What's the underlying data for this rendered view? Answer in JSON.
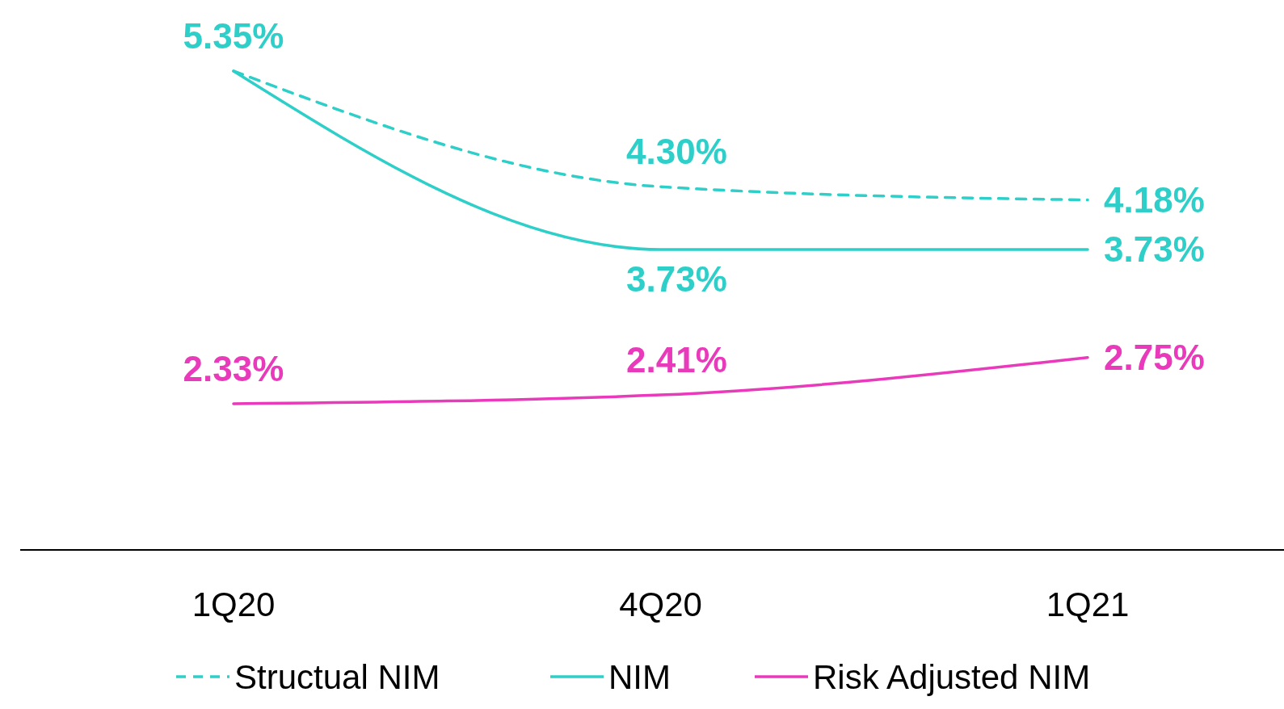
{
  "chart_data": {
    "type": "line",
    "categories": [
      "1Q20",
      "4Q20",
      "1Q21"
    ],
    "tick_labels": "x",
    "legend": "bottom",
    "grid": false,
    "series": [
      {
        "name": "Structual NIM",
        "color": "#2ecfc9",
        "line_style": "dashed",
        "values": [
          5.35,
          4.3,
          4.18
        ],
        "value_labels": [
          null,
          "4.30%",
          "4.18%"
        ]
      },
      {
        "name": "NIM",
        "color": "#2ecfc9",
        "line_style": "solid",
        "values": [
          5.35,
          3.73,
          3.73
        ],
        "value_labels": [
          "5.35%",
          "3.73%",
          "3.73%"
        ]
      },
      {
        "name": "Risk Adjusted NIM",
        "color": "#e83aba",
        "line_style": "solid",
        "values": [
          2.33,
          2.41,
          2.75
        ],
        "value_labels": [
          "2.33%",
          "2.41%",
          "2.75%"
        ]
      }
    ]
  }
}
